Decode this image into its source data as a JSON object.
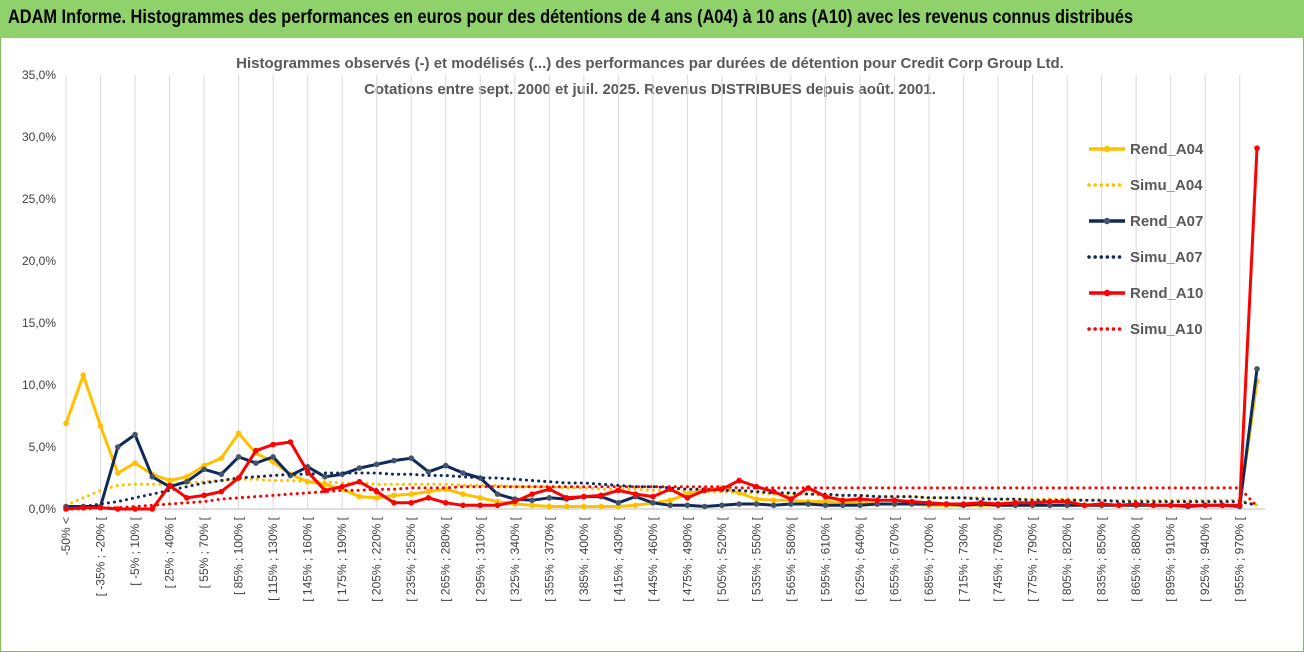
{
  "header": {
    "title": "ADAM Informe. Histogrammes des performances en euros pour des détentions de 4 ans (A04) à 10 ans (A10) avec les revenus connus distribués"
  },
  "chart_data": {
    "type": "line",
    "title_line1": "Histogrammes observés (-) et modélisés (...) des performances par durées de détention pour Credit Corp Group Ltd.",
    "title_line2": "Cotations entre sept. 2000 et juil. 2025. Revenus DISTRIBUES depuis août. 2001.",
    "y_ticks": [
      "0,0%",
      "5,0%",
      "10,0%",
      "15,0%",
      "20,0%",
      "25,0%",
      "30,0%",
      "35,0%"
    ],
    "ylim": [
      0,
      35
    ],
    "grid": "vertical",
    "legend_position": "right",
    "x_tick_labels": [
      "-50% <",
      "[ -35% ; -20% [",
      "[ -5% ; 10% [",
      "[ 25% ; 40% [",
      "[ 55% ; 70% [",
      "[ 85% ; 100% [",
      "[ 115% ; 130% [",
      "[ 145% ; 160% [",
      "[ 175% ; 190% [",
      "[ 205% ; 220% [",
      "[ 235% ; 250% [",
      "[ 265% ; 280% [",
      "[ 295% ; 310% [",
      "[ 325% ; 340% [",
      "[ 355% ; 370% [",
      "[ 385% ; 400% [",
      "[ 415% ; 430% [",
      "[ 445% ; 460% [",
      "[ 475% ; 490% [",
      "[ 505% ; 520% [",
      "[ 535% ; 550% [",
      "[ 565% ; 580% [",
      "[ 595% ; 610% [",
      "[ 625% ; 640% [",
      "[ 655% ; 670% [",
      "[ 685% ; 700% [",
      "[ 715% ; 730% [",
      "[ 745% ; 760% [",
      "[ 775% ; 790% [",
      "[ 805% ; 820% [",
      "[ 835% ; 850% [",
      "[ 865% ; 880% [",
      "[ 895% ; 910% [",
      "[ 925% ; 940% [",
      "[ 955% ; 970% ["
    ],
    "series": [
      {
        "name": "Rend_A04",
        "color": "#FFC000",
        "style": "solid",
        "values": [
          6.9,
          10.8,
          6.7,
          2.9,
          3.7,
          2.8,
          2.3,
          2.6,
          3.5,
          4.1,
          6.1,
          4.5,
          3.8,
          2.8,
          2.2,
          2.0,
          1.6,
          1.0,
          0.9,
          1.1,
          1.2,
          1.4,
          1.6,
          1.2,
          0.9,
          0.6,
          0.4,
          0.3,
          0.2,
          0.2,
          0.2,
          0.2,
          0.2,
          0.3,
          0.5,
          0.7,
          1.2,
          1.6,
          1.7,
          1.3,
          0.8,
          0.7,
          0.7,
          0.6,
          0.6,
          0.5,
          0.5,
          0.4,
          0.4,
          0.4,
          0.3,
          0.3,
          0.3,
          0.3,
          0.3,
          0.3,
          0.3,
          0.3,
          0.3,
          0.3,
          0.3,
          0.3,
          0.3,
          0.3,
          0.3,
          0.3,
          0.3,
          0.3,
          0.3,
          10.3
        ]
      },
      {
        "name": "Simu_A04",
        "color": "#FFC000",
        "style": "dotted",
        "values": [
          0.3,
          0.9,
          1.5,
          1.9,
          2.0,
          2.0,
          2.0,
          2.1,
          2.2,
          2.3,
          2.4,
          2.4,
          2.3,
          2.3,
          2.2,
          2.2,
          2.1,
          2.1,
          2.0,
          2.0,
          2.0,
          2.0,
          2.0,
          1.9,
          1.9,
          1.9,
          1.8,
          1.8,
          1.8,
          1.7,
          1.7,
          1.6,
          1.6,
          1.6,
          1.5,
          1.5,
          1.4,
          1.4,
          1.4,
          1.3,
          1.3,
          1.2,
          1.2,
          1.2,
          1.1,
          1.1,
          1.1,
          1.0,
          1.0,
          1.0,
          0.9,
          0.9,
          0.9,
          0.9,
          0.8,
          0.8,
          0.8,
          0.8,
          0.8,
          0.7,
          0.7,
          0.7,
          0.7,
          0.7,
          0.7,
          0.7,
          0.7,
          0.7,
          0.7,
          0.3
        ]
      },
      {
        "name": "Rend_A07",
        "color": "#0F2A5A",
        "style": "solid",
        "values": [
          0.2,
          0.2,
          0.2,
          5.0,
          6.0,
          2.6,
          1.8,
          2.2,
          3.2,
          2.8,
          4.2,
          3.7,
          4.2,
          2.7,
          3.4,
          2.6,
          2.8,
          3.3,
          3.6,
          3.9,
          4.1,
          3.0,
          3.5,
          2.9,
          2.5,
          1.2,
          0.8,
          0.7,
          0.9,
          0.8,
          1.0,
          1.0,
          0.5,
          1.0,
          0.5,
          0.3,
          0.3,
          0.2,
          0.3,
          0.4,
          0.4,
          0.3,
          0.4,
          0.4,
          0.3,
          0.3,
          0.3,
          0.4,
          0.4,
          0.4,
          0.4,
          0.4,
          0.3,
          0.4,
          0.3,
          0.3,
          0.3,
          0.3,
          0.3,
          0.3,
          0.3,
          0.3,
          0.3,
          0.3,
          0.3,
          0.2,
          0.3,
          0.3,
          0.2,
          11.3
        ]
      },
      {
        "name": "Simu_A07",
        "color": "#0F2A5A",
        "style": "dotted",
        "values": [
          0.1,
          0.2,
          0.4,
          0.6,
          0.9,
          1.2,
          1.5,
          1.8,
          2.1,
          2.3,
          2.5,
          2.6,
          2.7,
          2.8,
          2.8,
          2.9,
          2.9,
          2.9,
          2.9,
          2.8,
          2.8,
          2.7,
          2.7,
          2.6,
          2.5,
          2.5,
          2.4,
          2.3,
          2.2,
          2.1,
          2.1,
          2.0,
          1.9,
          1.8,
          1.8,
          1.7,
          1.6,
          1.6,
          1.5,
          1.5,
          1.4,
          1.3,
          1.3,
          1.2,
          1.2,
          1.1,
          1.1,
          1.0,
          1.0,
          1.0,
          0.9,
          0.9,
          0.9,
          0.8,
          0.8,
          0.8,
          0.7,
          0.7,
          0.7,
          0.7,
          0.7,
          0.6,
          0.6,
          0.6,
          0.6,
          0.6,
          0.6,
          0.6,
          0.6,
          0.3
        ]
      },
      {
        "name": "Rend_A10",
        "color": "#FF0000",
        "style": "solid",
        "values": [
          0.0,
          0.1,
          0.1,
          0.0,
          0.0,
          0.0,
          1.9,
          0.9,
          1.1,
          1.4,
          2.5,
          4.7,
          5.2,
          5.4,
          3.0,
          1.5,
          1.8,
          2.2,
          1.4,
          0.5,
          0.5,
          0.9,
          0.5,
          0.3,
          0.3,
          0.3,
          0.6,
          1.2,
          1.6,
          0.9,
          1.0,
          1.1,
          1.5,
          1.2,
          1.0,
          1.6,
          0.9,
          1.5,
          1.6,
          2.3,
          1.8,
          1.4,
          0.8,
          1.7,
          1.0,
          0.7,
          0.8,
          0.7,
          0.7,
          0.6,
          0.5,
          0.4,
          0.4,
          0.5,
          0.4,
          0.5,
          0.5,
          0.6,
          0.6,
          0.3,
          0.4,
          0.3,
          0.4,
          0.3,
          0.3,
          0.3,
          0.3,
          0.3,
          0.3,
          29.1
        ]
      },
      {
        "name": "Simu_A10",
        "color": "#FF0000",
        "style": "dotted",
        "values": [
          0.0,
          0.0,
          0.1,
          0.1,
          0.2,
          0.3,
          0.4,
          0.5,
          0.6,
          0.8,
          0.9,
          1.0,
          1.1,
          1.2,
          1.3,
          1.4,
          1.5,
          1.5,
          1.6,
          1.6,
          1.7,
          1.7,
          1.7,
          1.8,
          1.8,
          1.8,
          1.8,
          1.8,
          1.8,
          1.8,
          1.8,
          1.8,
          1.8,
          1.8,
          1.8,
          1.8,
          1.8,
          1.8,
          1.8,
          1.7,
          1.7,
          1.7,
          1.7,
          1.7,
          1.7,
          1.7,
          1.7,
          1.7,
          1.7,
          1.7,
          1.7,
          1.7,
          1.7,
          1.7,
          1.7,
          1.7,
          1.7,
          1.7,
          1.7,
          1.7,
          1.7,
          1.7,
          1.7,
          1.7,
          1.7,
          1.7,
          1.7,
          1.7,
          1.7,
          0.2
        ]
      }
    ]
  }
}
